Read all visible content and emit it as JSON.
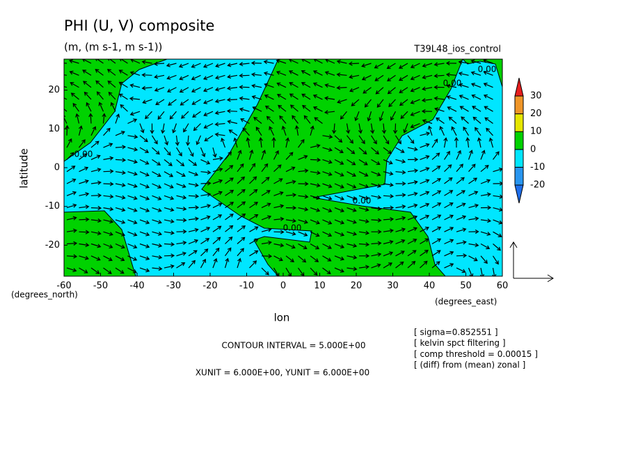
{
  "chart_data": {
    "type": "contour",
    "title": "PHI (U, V) composite",
    "subtitle": "(m, (m s-1, m s-1))",
    "run_label": "T39L48_ios_control",
    "xlabel": "lon",
    "ylabel": "latitude",
    "x_unit_label": "(degrees_east)",
    "y_unit_label": "(degrees_north)",
    "xlim": [
      -60,
      60
    ],
    "ylim": [
      -28,
      28
    ],
    "xticks": [
      -60,
      -50,
      -40,
      -30,
      -20,
      -10,
      0,
      10,
      20,
      30,
      40,
      50,
      60
    ],
    "yticks": [
      -20,
      -10,
      0,
      10,
      20
    ],
    "fill_colors": {
      "positive": "#00d200",
      "negative": "#00e6ff"
    },
    "colorbar": {
      "levels": [
        -20,
        -10,
        0,
        10,
        20,
        30
      ],
      "colors": [
        "#1e6eeb",
        "#2896f0",
        "#00e6ff",
        "#00d200",
        "#e6e600",
        "#f09628",
        "#e61e1e"
      ]
    },
    "contour_labels": [
      "0.00",
      "0.00",
      "0.00",
      "0.00",
      "0.00"
    ],
    "contour_interval": "CONTOUR INTERVAL = 5.000E+00",
    "vector_units": "XUNIT = 6.000E+00, YUNIT = 6.000E+00",
    "notes": [
      "[ sigma=0.852551 ]",
      "[ kelvin spct filtering ]",
      "[ comp threshold = 0.00015 ]",
      "[ (diff) from (mean) zonal ]"
    ]
  }
}
